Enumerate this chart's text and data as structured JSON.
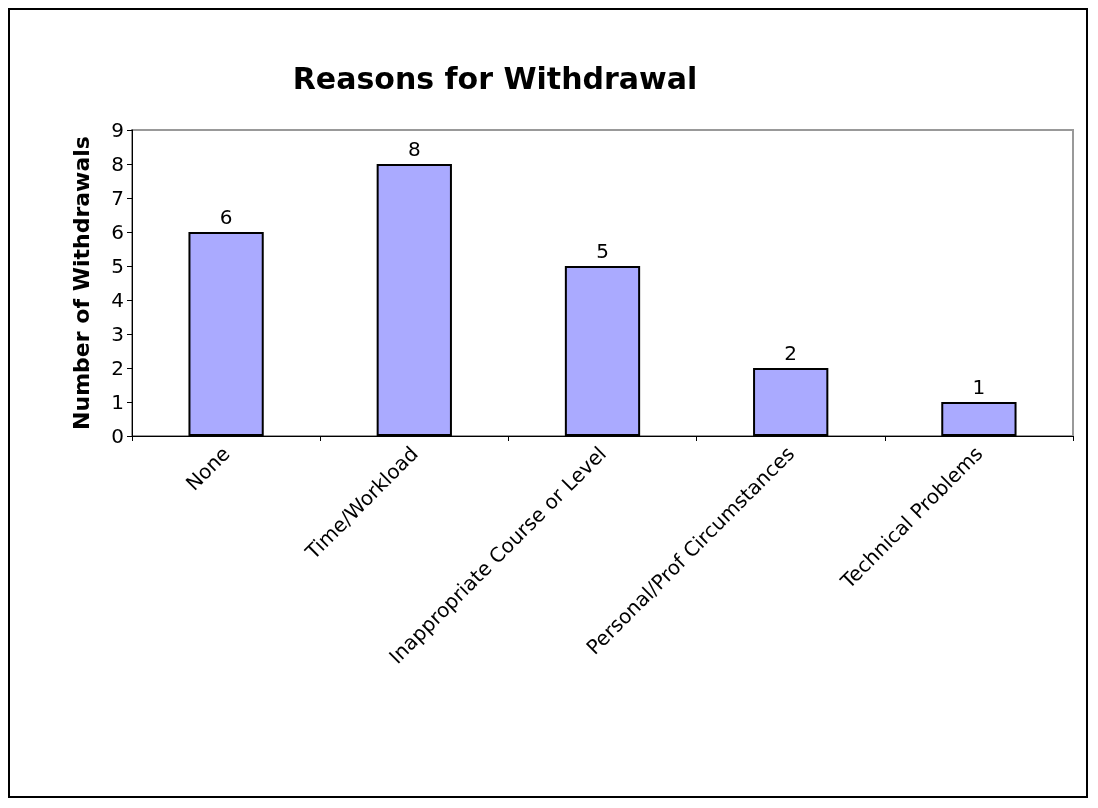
{
  "chart_data": {
    "type": "bar",
    "title": "Reasons for Withdrawal",
    "ylabel": "Number of Withdrawals",
    "categories": [
      "None",
      "Time/Workload",
      "Inappropriate Course or Level",
      "Personal/Prof Circumstances",
      "Technical Problems"
    ],
    "values": [
      6,
      8,
      5,
      2,
      1
    ],
    "color": "#aaaaff",
    "ylim": [
      0,
      9
    ],
    "yticks": [
      0,
      1,
      2,
      3,
      4,
      5,
      6,
      7,
      8,
      9
    ],
    "grid": false,
    "data_labels": true
  }
}
